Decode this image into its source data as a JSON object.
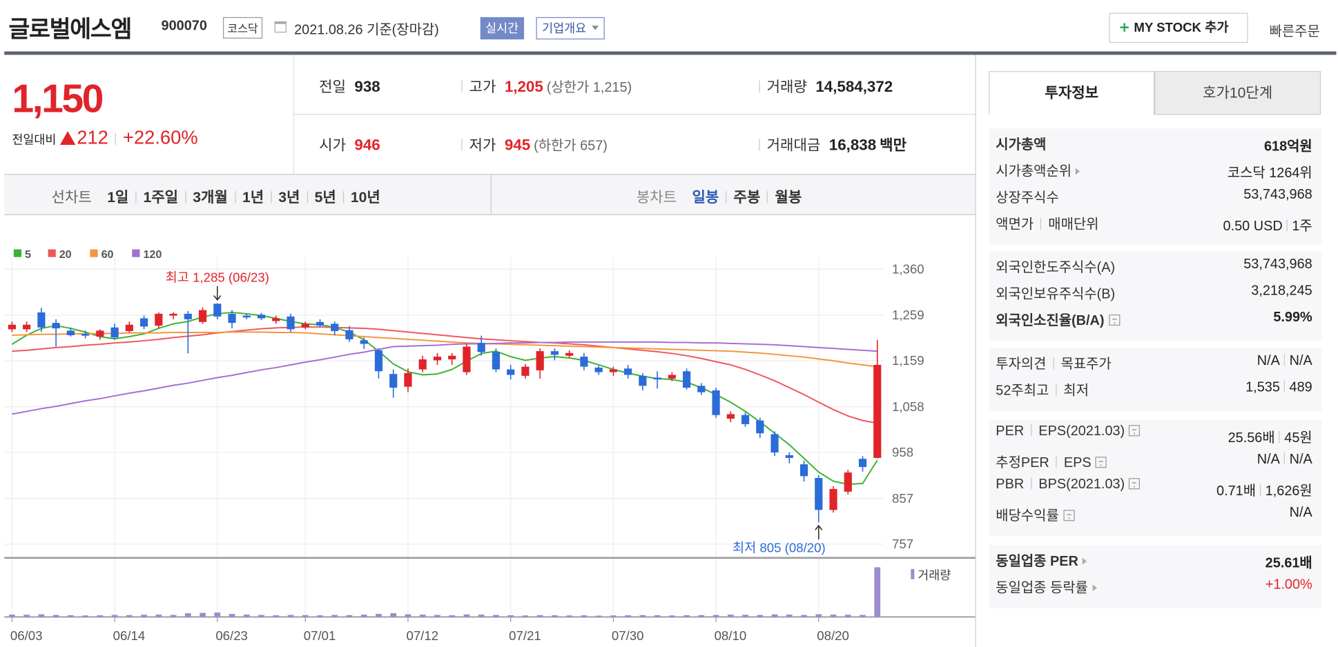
{
  "header": {
    "name": "글로벌에스엠",
    "code": "900070",
    "market": "코스닥",
    "date": "2021.08.26 기준(장마감)",
    "realtime": "실시간",
    "company": "기업개요",
    "mystock": "MY STOCK 추가",
    "quick": "빠른주문"
  },
  "quote": {
    "price": "1,150",
    "change_label": "전일대비",
    "change": "212",
    "rate": "+22.60%",
    "items": [
      {
        "label": "전일",
        "value": "938"
      },
      {
        "label": "고가",
        "value": "1,205",
        "note": "(상한가 1,215)",
        "color": "#e1232a"
      },
      {
        "label": "거래량",
        "value": "14,584,372"
      },
      {
        "label": "시가",
        "value": "946",
        "color": "#e1232a"
      },
      {
        "label": "저가",
        "value": "945",
        "note": "(하한가 657)",
        "color": "#e1232a"
      },
      {
        "label": "거래대금",
        "value": "16,838",
        "unit": "백만"
      }
    ]
  },
  "periods": {
    "line_label": "선차트",
    "line": [
      "1일",
      "1주일",
      "3개월",
      "1년",
      "3년",
      "5년",
      "10년"
    ],
    "candle_label": "봉차트",
    "candle": [
      "일봉",
      "주봉",
      "월봉"
    ],
    "active": 0
  },
  "chart_data": {
    "type": "candlestick",
    "categories": [
      "06/03",
      null,
      null,
      null,
      null,
      null,
      null,
      "06/14",
      null,
      null,
      null,
      null,
      null,
      null,
      "06/23",
      null,
      null,
      null,
      null,
      null,
      "07/01",
      null,
      null,
      null,
      null,
      null,
      null,
      "07/12",
      null,
      null,
      null,
      null,
      null,
      null,
      "07/21",
      null,
      null,
      null,
      null,
      null,
      null,
      "07/30",
      null,
      null,
      null,
      null,
      null,
      null,
      "08/10",
      null,
      null,
      null,
      null,
      null,
      null,
      "08/20",
      null,
      null,
      null,
      null
    ],
    "open": [
      1228,
      1228,
      1265,
      1242,
      1225,
      1218,
      1212,
      1232,
      1224,
      1252,
      1236,
      1258,
      1262,
      1244,
      1284,
      1262,
      1258,
      1260,
      1246,
      1256,
      1232,
      1244,
      1240,
      1226,
      1204,
      1182,
      1130,
      1102,
      1140,
      1160,
      1162,
      1134,
      1198,
      1178,
      1140,
      1126,
      1138,
      1180,
      1170,
      1168,
      1144,
      1134,
      1142,
      1126,
      1122,
      1120,
      1136,
      1104,
      1094,
      1032,
      1040,
      1028,
      998,
      952,
      932,
      902,
      832,
      872,
      944,
      946
    ],
    "high": [
      1245,
      1245,
      1275,
      1250,
      1232,
      1225,
      1228,
      1240,
      1245,
      1258,
      1265,
      1265,
      1268,
      1276,
      1285,
      1270,
      1262,
      1264,
      1258,
      1262,
      1245,
      1250,
      1245,
      1235,
      1210,
      1186,
      1140,
      1142,
      1170,
      1176,
      1176,
      1196,
      1214,
      1186,
      1150,
      1152,
      1186,
      1186,
      1182,
      1176,
      1148,
      1146,
      1150,
      1132,
      1136,
      1134,
      1142,
      1110,
      1100,
      1048,
      1046,
      1034,
      1004,
      958,
      940,
      908,
      884,
      920,
      950,
      1205
    ],
    "low": [
      1222,
      1222,
      1222,
      1190,
      1212,
      1208,
      1205,
      1205,
      1220,
      1228,
      1230,
      1250,
      1175,
      1240,
      1250,
      1230,
      1250,
      1248,
      1240,
      1222,
      1228,
      1232,
      1215,
      1200,
      1185,
      1120,
      1078,
      1090,
      1134,
      1150,
      1150,
      1128,
      1170,
      1134,
      1118,
      1120,
      1120,
      1160,
      1166,
      1138,
      1128,
      1126,
      1120,
      1094,
      1098,
      1114,
      1096,
      1084,
      1034,
      1024,
      1014,
      990,
      950,
      934,
      894,
      805,
      826,
      866,
      916,
      945
    ],
    "close": [
      1238,
      1238,
      1232,
      1230,
      1215,
      1214,
      1225,
      1210,
      1238,
      1234,
      1262,
      1262,
      1250,
      1270,
      1256,
      1242,
      1254,
      1252,
      1252,
      1228,
      1240,
      1236,
      1224,
      1206,
      1196,
      1136,
      1100,
      1132,
      1162,
      1168,
      1170,
      1190,
      1178,
      1140,
      1128,
      1146,
      1180,
      1172,
      1176,
      1146,
      1134,
      1140,
      1128,
      1104,
      1118,
      1128,
      1100,
      1090,
      1040,
      1042,
      1020,
      1000,
      958,
      946,
      906,
      832,
      878,
      914,
      926,
      1150
    ],
    "up_color": "#e1232a",
    "down_color": "#2b6cd8",
    "series": [
      {
        "name": "5",
        "color": "#3db234",
        "values": [
          1195,
          1215,
          1230,
          1236,
          1230,
          1222,
          1212,
          1207,
          1212,
          1218,
          1230,
          1240,
          1245,
          1255,
          1262,
          1265,
          1262,
          1258,
          1252,
          1245,
          1240,
          1238,
          1232,
          1222,
          1205,
          1180,
          1152,
          1135,
          1128,
          1130,
          1140,
          1158,
          1175,
          1180,
          1168,
          1160,
          1165,
          1168,
          1165,
          1160,
          1150,
          1140,
          1132,
          1125,
          1120,
          1118,
          1112,
          1100,
          1085,
          1068,
          1048,
          1025,
          1000,
          975,
          945,
          915,
          895,
          888,
          890,
          941
        ]
      },
      {
        "name": "20",
        "color": "#f0575a",
        "values": [
          1180,
          1182,
          1185,
          1188,
          1190,
          1193,
          1195,
          1198,
          1200,
          1203,
          1206,
          1210,
          1213,
          1216,
          1220,
          1223,
          1226,
          1229,
          1231,
          1232,
          1233,
          1233,
          1232,
          1231,
          1230,
          1228,
          1225,
          1222,
          1219,
          1216,
          1213,
          1210,
          1207,
          1205,
          1203,
          1201,
          1199,
          1198,
          1196,
          1194,
          1191,
          1188,
          1185,
          1182,
          1179,
          1175,
          1170,
          1164,
          1157,
          1150,
          1140,
          1128,
          1115,
          1100,
          1085,
          1068,
          1052,
          1038,
          1028,
          1022
        ]
      },
      {
        "name": "60",
        "color": "#f5953f",
        "values": [
          1215,
          1216,
          1217,
          1217,
          1218,
          1218,
          1219,
          1219,
          1220,
          1220,
          1220,
          1221,
          1221,
          1221,
          1221,
          1222,
          1222,
          1222,
          1221,
          1221,
          1220,
          1218,
          1216,
          1214,
          1212,
          1210,
          1208,
          1206,
          1204,
          1202,
          1200,
          1198,
          1197,
          1196,
          1195,
          1194,
          1193,
          1192,
          1191,
          1190,
          1189,
          1188,
          1187,
          1186,
          1185,
          1184,
          1183,
          1182,
          1181,
          1180,
          1178,
          1176,
          1173,
          1170,
          1167,
          1163,
          1159,
          1154,
          1150,
          1146
        ]
      },
      {
        "name": "120",
        "color": "#a56fd2",
        "values": [
          1042,
          1048,
          1054,
          1059,
          1065,
          1071,
          1076,
          1082,
          1088,
          1093,
          1099,
          1105,
          1110,
          1116,
          1122,
          1127,
          1133,
          1139,
          1144,
          1150,
          1156,
          1161,
          1167,
          1173,
          1178,
          1184,
          1190,
          1191,
          1192,
          1193,
          1195,
          1196,
          1196,
          1197,
          1198,
          1198,
          1199,
          1199,
          1200,
          1200,
          1200,
          1200,
          1200,
          1200,
          1200,
          1199,
          1199,
          1198,
          1198,
          1197,
          1196,
          1195,
          1194,
          1192,
          1190,
          1188,
          1186,
          1184,
          1182,
          1180
        ]
      }
    ],
    "volume_name": "거래량",
    "volume_color": "#9c8ccf",
    "volume": [
      700000,
      650000,
      800000,
      600000,
      500000,
      450000,
      500000,
      600000,
      550000,
      650000,
      700000,
      600000,
      1100000,
      1200000,
      1300000,
      900000,
      700000,
      600000,
      500000,
      600000,
      550000,
      500000,
      600000,
      550000,
      700000,
      900000,
      1100000,
      800000,
      700000,
      600000,
      500000,
      750000,
      700000,
      600000,
      500000,
      450000,
      550000,
      500000,
      450000,
      500000,
      400000,
      450000,
      500000,
      550000,
      500000,
      450000,
      500000,
      550000,
      600000,
      700000,
      650000,
      600000,
      750000,
      700000,
      600000,
      800000,
      700000,
      650000,
      600000,
      14584372
    ],
    "y2lim": [
      0,
      14584372
    ],
    "ylim": [
      757,
      1360
    ],
    "yticks": [
      757,
      857,
      958,
      {
        "value": 1058,
        "label": "1,058"
      },
      {
        "value": 1159,
        "label": "1,159"
      },
      {
        "value": 1259,
        "label": "1,259"
      },
      {
        "value": 1360,
        "label": "1,360"
      }
    ],
    "grid": true,
    "annotations": [
      {
        "text": "최고 1,285 (06/23)",
        "category": "06/23",
        "value": 1285,
        "kind": "high"
      },
      {
        "text": "최저 805 (08/20)",
        "category": "08/20",
        "value": 805,
        "kind": "low"
      }
    ]
  },
  "side": {
    "tabs": [
      "투자정보",
      "호가10단계"
    ],
    "active_tab": 0,
    "sections": [
      [
        {
          "label": [
            "시가총액"
          ],
          "value": [
            "618억원"
          ],
          "bold": true
        },
        {
          "label": [
            "시가총액순위"
          ],
          "icon": "arrow",
          "value": [
            "코스닥 1264위"
          ]
        },
        {
          "label": [
            "상장주식수"
          ],
          "value": [
            "53,743,968"
          ]
        },
        {
          "label": [
            "액면가",
            "매매단위"
          ],
          "value": [
            "0.50 USD",
            "1주"
          ]
        }
      ],
      [
        {
          "label": [
            "외국인한도주식수(A)"
          ],
          "value": [
            "53,743,968"
          ]
        },
        {
          "label": [
            "외국인보유주식수(B)"
          ],
          "value": [
            "3,218,245"
          ]
        },
        {
          "label": [
            "외국인소진율(B/A)"
          ],
          "icon": "help",
          "value": [
            "5.99%"
          ],
          "bold": true
        }
      ],
      [
        {
          "label": [
            "투자의견",
            "목표주가"
          ],
          "value": [
            "N/A",
            "N/A"
          ]
        },
        {
          "label": [
            "52주최고",
            "최저"
          ],
          "value": [
            "1,535",
            "489"
          ]
        }
      ],
      [
        {
          "label": [
            "PER",
            "EPS(2021.03)"
          ],
          "icon": "help",
          "value": [
            "25.56배",
            "45원"
          ]
        },
        {
          "label": [
            "추정PER",
            "EPS"
          ],
          "icon": "help",
          "value": [
            "N/A",
            "N/A"
          ]
        },
        {
          "label": [
            "PBR",
            "BPS(2021.03)"
          ],
          "icon": "help",
          "value": [
            "0.71배",
            "1,626원"
          ]
        },
        {
          "label": [
            "배당수익률"
          ],
          "icon": "help",
          "value": [
            "N/A"
          ]
        }
      ],
      [
        {
          "label": [
            "동일업종 PER"
          ],
          "icon": "arrow",
          "value": [
            "25.61배"
          ],
          "bold": true
        },
        {
          "label": [
            "동일업종 등락률"
          ],
          "icon": "arrow",
          "value": [
            "+1.00%"
          ],
          "color": "#e1232a"
        }
      ]
    ]
  }
}
